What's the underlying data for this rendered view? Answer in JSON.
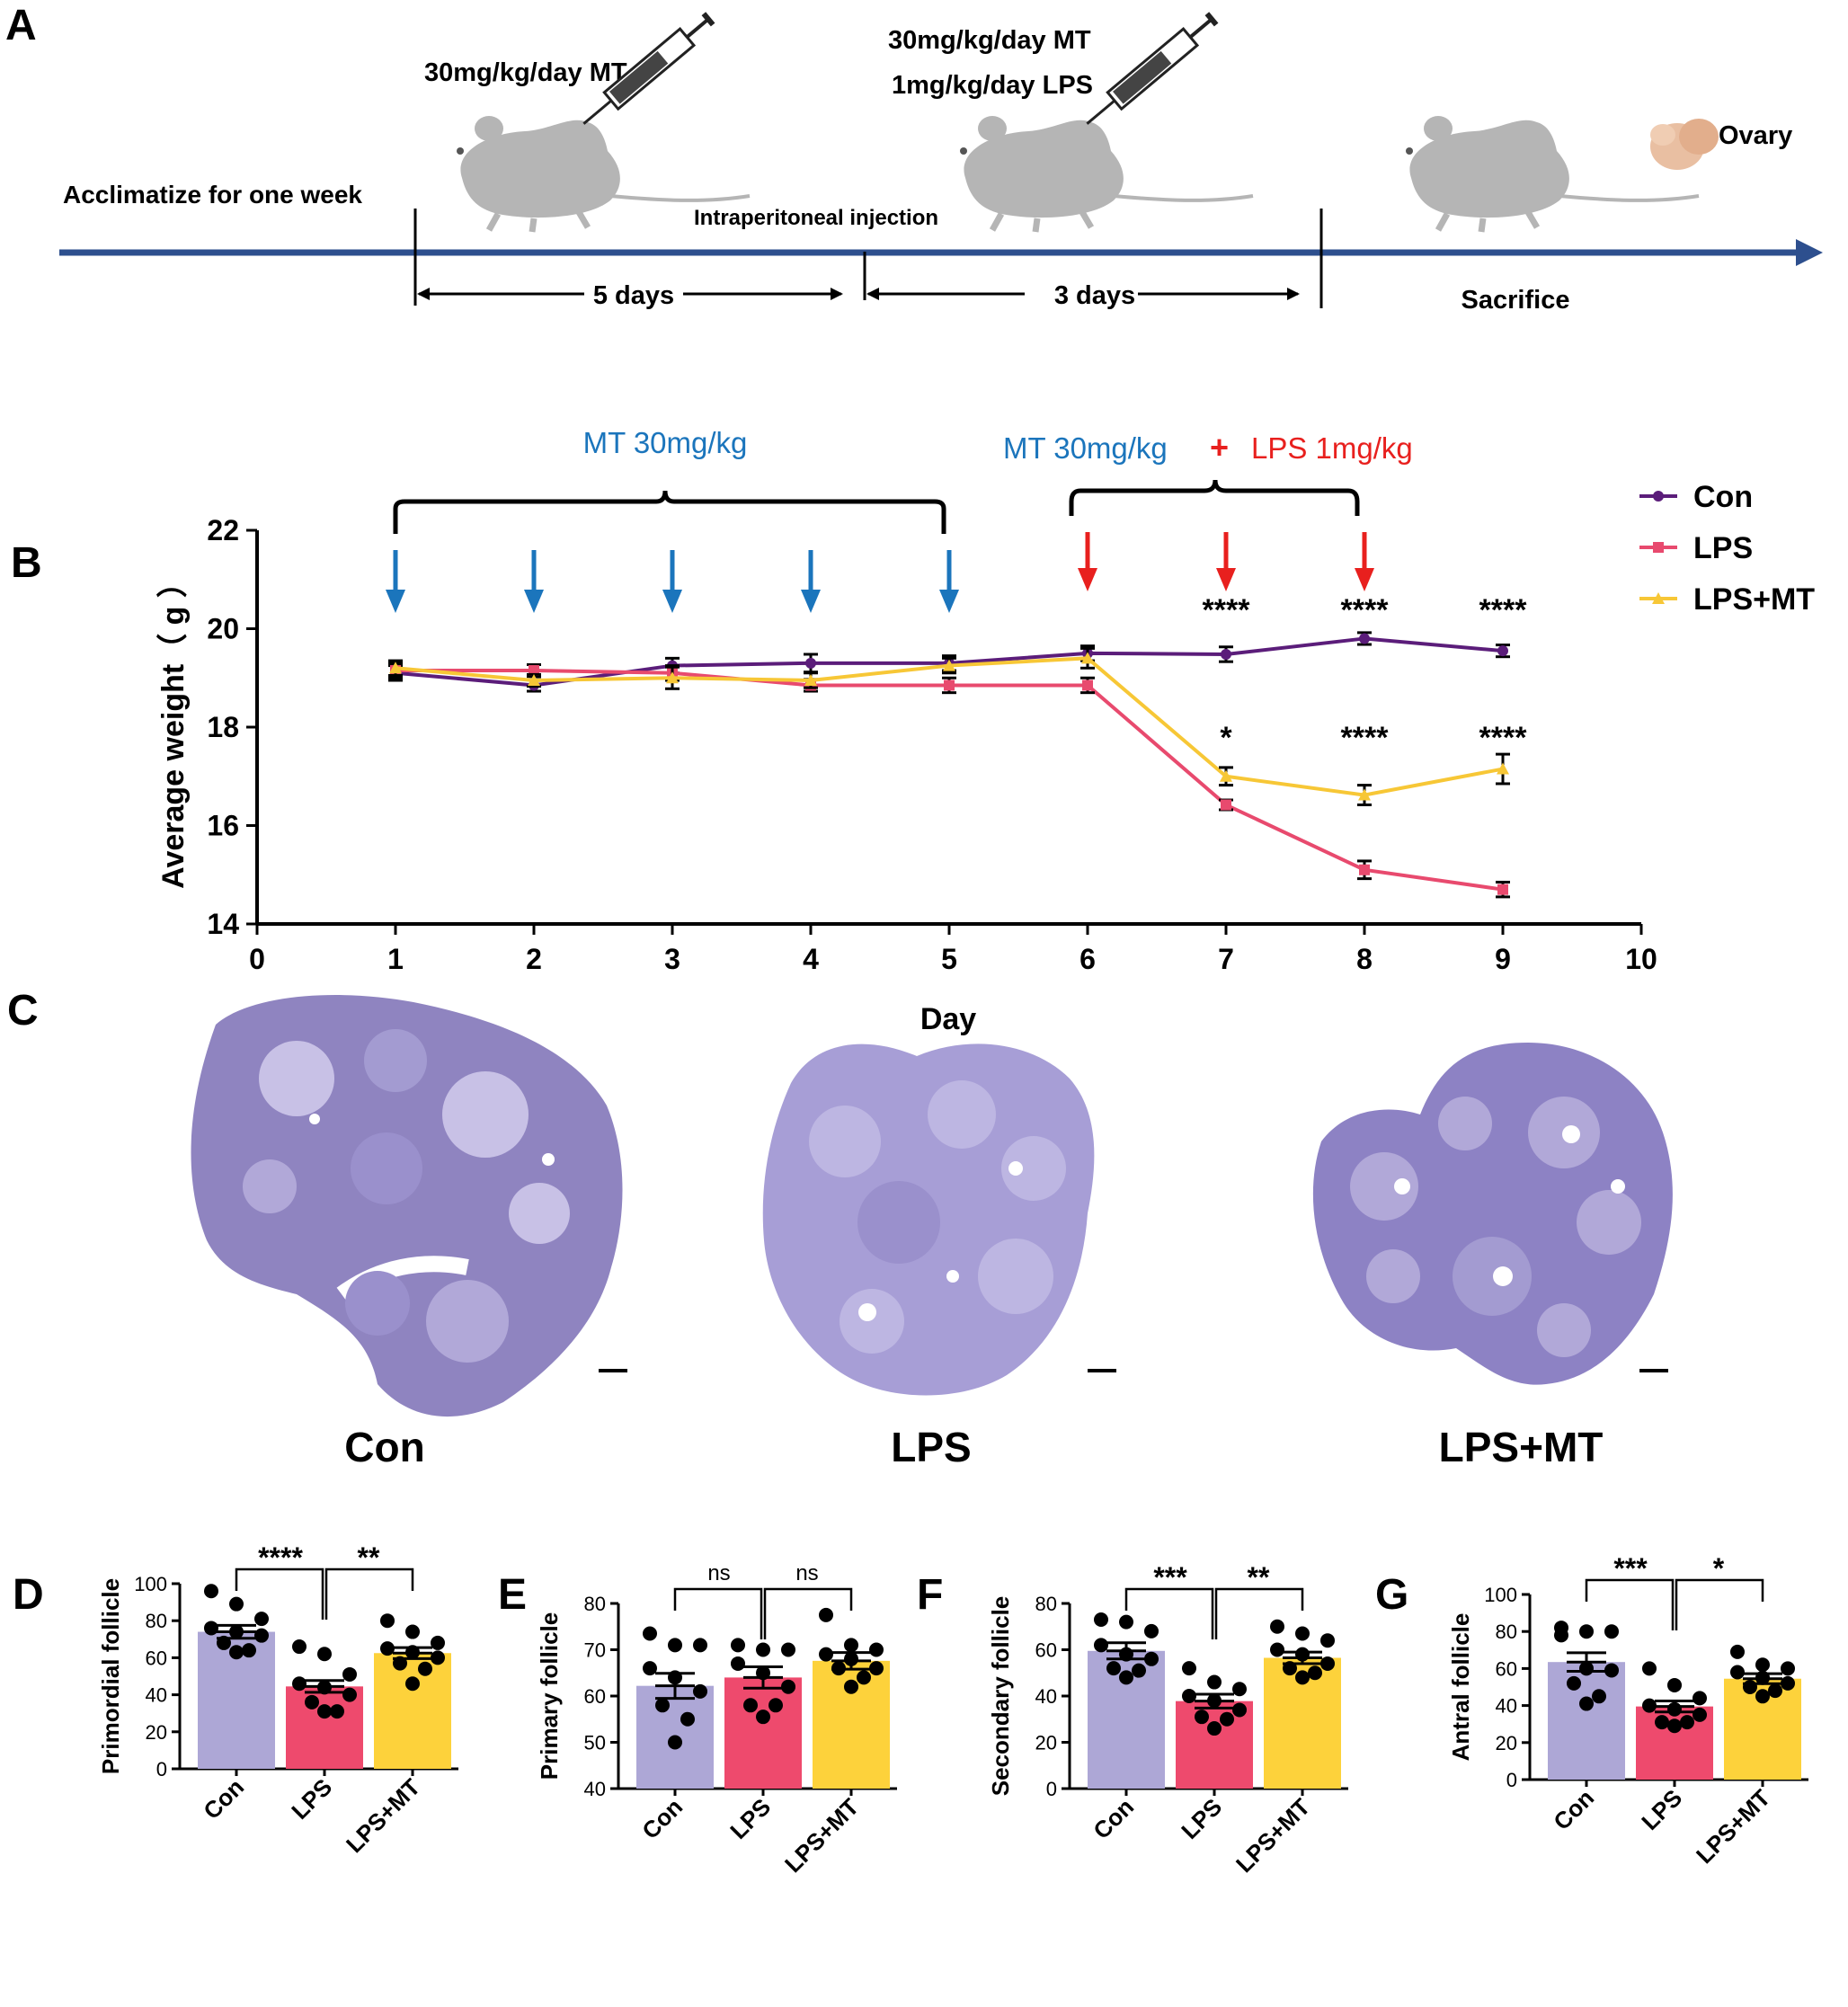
{
  "colors": {
    "timeline": "#2d4f8e",
    "con": "#5b1d7a",
    "lps": "#e84a6e",
    "mt": "#f7c736",
    "mt_text": "#1b75bc",
    "lps_text": "#e8201e",
    "bar_con": "#ada7d6",
    "bar_lps": "#ee4a6d",
    "bar_mt": "#fdd23b",
    "stain": "#7b6fb5",
    "mouse": "#b5b5b5",
    "ovary": "#e9bfa2"
  },
  "panel_a": {
    "label": "A",
    "acclimatize": "Acclimatize for one week",
    "dose1": "30mg/kg/day  MT",
    "dose2a": "30mg/kg/day  MT",
    "dose2b": "1mg/kg/day LPS",
    "injection": "Intraperitoneal injection",
    "period1": "5 days",
    "period2": "3 days",
    "sacrifice": "Sacrifice",
    "ovary": "Ovary"
  },
  "panel_b": {
    "label": "B",
    "bracket1": "MT 30mg/kg",
    "bracket2_mt": "MT 30mg/kg",
    "bracket2_plus": "+",
    "bracket2_lps": "LPS 1mg/kg",
    "chart_data": {
      "type": "line",
      "title": "",
      "xlabel": "Day",
      "ylabel": "Average weight（ g ）",
      "xlim": [
        0,
        10
      ],
      "ylim": [
        14,
        22
      ],
      "xticks": [
        0,
        1,
        2,
        3,
        4,
        5,
        6,
        7,
        8,
        9,
        10
      ],
      "yticks": [
        14,
        16,
        18,
        20,
        22
      ],
      "x": [
        1,
        2,
        3,
        4,
        5,
        6,
        7,
        8,
        9
      ],
      "legend_position": "right",
      "series": [
        {
          "name": "Con",
          "color": "#5b1d7a",
          "marker": "circle",
          "values": [
            19.1,
            18.85,
            19.25,
            19.3,
            19.3,
            19.5,
            19.48,
            19.8,
            19.55
          ],
          "err": [
            0.15,
            0.12,
            0.15,
            0.18,
            0.15,
            0.15,
            0.15,
            0.12,
            0.12
          ]
        },
        {
          "name": "LPS",
          "color": "#e84a6e",
          "marker": "square",
          "values": [
            19.15,
            19.15,
            19.1,
            18.85,
            18.85,
            18.85,
            16.42,
            15.1,
            14.7
          ],
          "err": [
            0.15,
            0.12,
            0.15,
            0.12,
            0.15,
            0.15,
            0.1,
            0.18,
            0.15
          ]
        },
        {
          "name": "LPS+MT",
          "color": "#f7c736",
          "marker": "triangle",
          "values": [
            19.2,
            18.95,
            19.0,
            18.95,
            19.25,
            19.4,
            17.0,
            16.62,
            17.15
          ],
          "err": [
            0.15,
            0.12,
            0.22,
            0.15,
            0.15,
            0.2,
            0.18,
            0.2,
            0.3
          ]
        }
      ],
      "annotations": [
        {
          "day": 7,
          "level": "upper",
          "text": "****"
        },
        {
          "day": 8,
          "level": "upper",
          "text": "****"
        },
        {
          "day": 9,
          "level": "upper",
          "text": "****"
        },
        {
          "day": 7,
          "level": "lower",
          "text": "*"
        },
        {
          "day": 8,
          "level": "lower",
          "text": "****"
        },
        {
          "day": 9,
          "level": "lower",
          "text": "****"
        }
      ],
      "blue_arrow_days": [
        1,
        2,
        3,
        4,
        5
      ],
      "red_arrow_days": [
        6,
        7,
        8
      ]
    }
  },
  "panel_c": {
    "label": "C",
    "groups": [
      "Con",
      "LPS",
      "LPS+MT"
    ]
  },
  "bar_charts": [
    {
      "panel": "D",
      "type": "bar",
      "ylabel": "Primordial follicle",
      "categories": [
        "Con",
        "LPS",
        "LPS+MT"
      ],
      "values": [
        74,
        44.5,
        62.5
      ],
      "sem": [
        3.5,
        3.2,
        3.0
      ],
      "ylim": [
        0,
        100
      ],
      "yticks": [
        0,
        20,
        40,
        60,
        80,
        100
      ],
      "points": [
        [
          96,
          89,
          81,
          76,
          74,
          72,
          68,
          64,
          63
        ],
        [
          66,
          62,
          51,
          46,
          44,
          40,
          36,
          31,
          31
        ],
        [
          80,
          74,
          68,
          65,
          63,
          60,
          57,
          54,
          46
        ]
      ],
      "sig": [
        "****",
        "**"
      ]
    },
    {
      "panel": "E",
      "type": "bar",
      "ylabel": "Primary follicle",
      "categories": [
        "Con",
        "LPS",
        "LPS+MT"
      ],
      "values": [
        62.2,
        64,
        67.6
      ],
      "sem": [
        2.7,
        2.3,
        1.8
      ],
      "ylim": [
        40,
        80
      ],
      "yticks": [
        40,
        50,
        60,
        70,
        80
      ],
      "points": [
        [
          73.5,
          71,
          71,
          66,
          64,
          61,
          58,
          55,
          50
        ],
        [
          71,
          70,
          70,
          67,
          65,
          62,
          58,
          58,
          55.5
        ],
        [
          77.5,
          71,
          70,
          69,
          68,
          66,
          66,
          64,
          62
        ]
      ],
      "sig": [
        "ns",
        "ns"
      ]
    },
    {
      "panel": "F",
      "type": "bar",
      "ylabel": "Secondary follicle",
      "categories": [
        "Con",
        "LPS",
        "LPS+MT"
      ],
      "values": [
        59.5,
        37.8,
        56.5
      ],
      "sem": [
        3.5,
        3.0,
        2.5
      ],
      "ylim": [
        0,
        80
      ],
      "yticks": [
        0,
        20,
        40,
        60,
        80
      ],
      "points": [
        [
          73,
          72,
          68,
          62,
          58,
          56,
          52,
          51,
          48
        ],
        [
          52,
          46,
          43,
          40,
          38,
          34,
          31,
          30,
          26
        ],
        [
          70,
          67,
          64,
          60,
          58,
          54,
          52,
          50,
          48
        ]
      ],
      "sig": [
        "***",
        "**"
      ]
    },
    {
      "panel": "G",
      "type": "bar",
      "ylabel": "Antral follicle",
      "categories": [
        "Con",
        "LPS",
        "LPS+MT"
      ],
      "values": [
        63.5,
        39.5,
        54.5
      ],
      "sem": [
        5.0,
        3.0,
        2.7
      ],
      "ylim": [
        0,
        100
      ],
      "yticks": [
        0,
        20,
        40,
        60,
        80,
        100
      ],
      "points": [
        [
          82,
          80,
          80,
          78,
          60,
          59,
          52,
          45,
          41
        ],
        [
          60,
          51,
          44,
          40,
          38,
          35,
          31,
          31,
          29
        ],
        [
          69,
          62,
          60,
          58,
          55,
          52,
          50,
          48,
          45
        ]
      ],
      "sig": [
        "***",
        "*"
      ]
    }
  ]
}
